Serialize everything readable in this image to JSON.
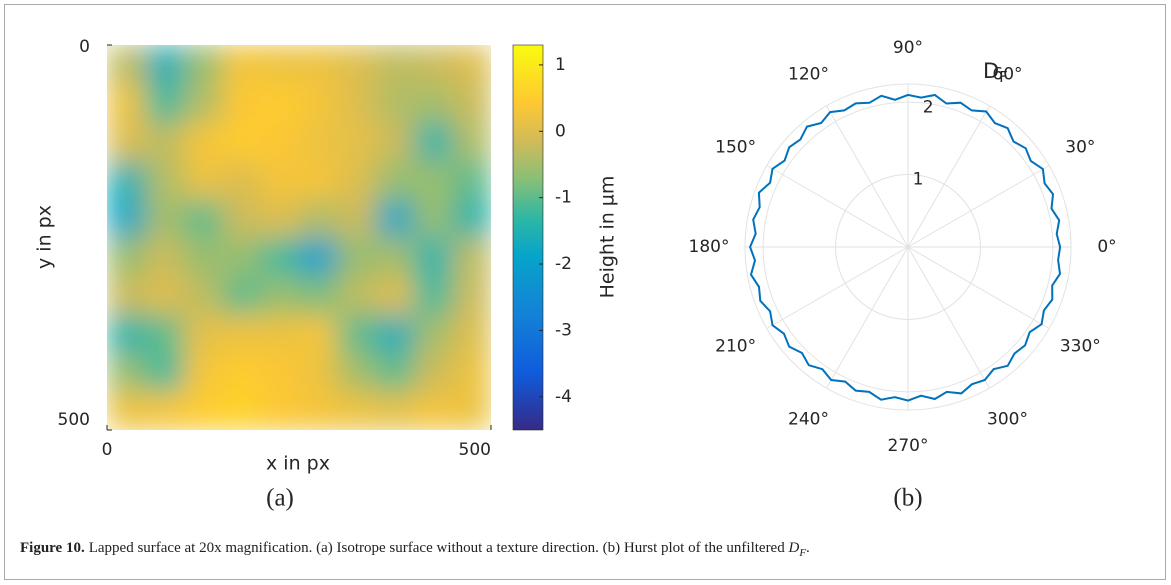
{
  "chart_data": [
    {
      "type": "heatmap",
      "panel_label": "(a)",
      "xlabel": "x in px",
      "ylabel": "y in px",
      "colorbar_label": "Height in µm",
      "colormap": "parula",
      "xlim": [
        0,
        500
      ],
      "ylim": [
        500,
        0
      ],
      "xticks": [
        0,
        500
      ],
      "yticks": [
        0,
        500
      ],
      "clim": [
        -4.5,
        1.3
      ],
      "cticks": [
        1,
        0,
        -1,
        -2,
        -3,
        -4
      ],
      "z": [
        [
          -0.3,
          -1.6,
          -0.6,
          0.3,
          0.2,
          0.2,
          0.0,
          -0.3,
          -0.2,
          0.0
        ],
        [
          0.2,
          -1.2,
          -0.4,
          0.4,
          0.5,
          0.3,
          0.0,
          -0.4,
          -0.5,
          -0.2
        ],
        [
          0.0,
          -0.3,
          0.3,
          0.5,
          0.4,
          0.2,
          0.1,
          -0.2,
          -1.4,
          -0.4
        ],
        [
          -1.5,
          -0.4,
          0.2,
          0.0,
          0.3,
          0.3,
          0.0,
          -0.6,
          -0.6,
          -1.0
        ],
        [
          -1.8,
          -0.5,
          -1.0,
          -0.2,
          0.0,
          -0.4,
          -0.2,
          -1.8,
          -0.6,
          -1.4
        ],
        [
          -0.6,
          -0.2,
          -0.6,
          -0.6,
          -1.2,
          -2.0,
          -0.6,
          -0.5,
          -1.4,
          -0.3
        ],
        [
          -0.2,
          0.0,
          -0.3,
          -1.0,
          -0.6,
          -0.8,
          -0.3,
          0.0,
          -1.2,
          -0.2
        ],
        [
          -1.4,
          -1.0,
          0.1,
          0.2,
          0.2,
          0.3,
          -1.0,
          -1.6,
          -0.5,
          0.0
        ],
        [
          -0.6,
          -1.2,
          0.3,
          0.5,
          0.4,
          0.2,
          -0.5,
          -1.0,
          -0.2,
          0.2
        ],
        [
          0.2,
          0.3,
          0.5,
          0.6,
          0.4,
          0.3,
          0.2,
          0.1,
          0.3,
          0.2
        ]
      ]
    },
    {
      "type": "polar",
      "panel_label": "(b)",
      "rlabel": "D",
      "rlabel_sub": "F",
      "color": "#0072bd",
      "rlim": [
        0,
        2.25
      ],
      "rticks": [
        1,
        2
      ],
      "thetaticks": [
        {
          "value": 0,
          "label": "0°"
        },
        {
          "value": 30,
          "label": "30°"
        },
        {
          "value": 60,
          "label": "60°"
        },
        {
          "value": 90,
          "label": "90°"
        },
        {
          "value": 120,
          "label": "120°"
        },
        {
          "value": 150,
          "label": "150°"
        },
        {
          "value": 180,
          "label": "180°"
        },
        {
          "value": 210,
          "label": "210°"
        },
        {
          "value": 240,
          "label": "240°"
        },
        {
          "value": 270,
          "label": "270°"
        },
        {
          "value": 300,
          "label": "300°"
        },
        {
          "value": 330,
          "label": "330°"
        }
      ],
      "theta": [
        0,
        5,
        10,
        15,
        20,
        25,
        30,
        35,
        40,
        45,
        50,
        55,
        60,
        65,
        70,
        75,
        80,
        85,
        90,
        95,
        100,
        105,
        110,
        115,
        120,
        125,
        130,
        135,
        140,
        145,
        150,
        155,
        160,
        165,
        170,
        175,
        180,
        185,
        190,
        195,
        200,
        205,
        210,
        215,
        220,
        225,
        230,
        235,
        240,
        245,
        250,
        255,
        260,
        265,
        270,
        275,
        280,
        285,
        290,
        295,
        300,
        305,
        310,
        315,
        320,
        325,
        330,
        335,
        340,
        345,
        350,
        355
      ],
      "r": [
        2.1,
        2.06,
        2.12,
        2.05,
        2.13,
        2.08,
        2.15,
        2.07,
        2.12,
        2.06,
        2.14,
        2.09,
        2.16,
        2.08,
        2.12,
        2.05,
        2.13,
        2.07,
        2.1,
        2.04,
        2.12,
        2.06,
        2.11,
        2.08,
        2.15,
        2.09,
        2.17,
        2.1,
        2.14,
        2.08,
        2.16,
        2.1,
        2.19,
        2.12,
        2.17,
        2.11,
        2.18,
        2.12,
        2.2,
        2.13,
        2.17,
        2.1,
        2.16,
        2.09,
        2.14,
        2.07,
        2.13,
        2.06,
        2.12,
        2.05,
        2.11,
        2.07,
        2.14,
        2.08,
        2.12,
        2.06,
        2.13,
        2.07,
        2.15,
        2.09,
        2.12,
        2.06,
        2.14,
        2.08,
        2.11,
        2.05,
        2.13,
        2.07,
        2.12,
        2.06,
        2.13,
        2.08
      ]
    }
  ],
  "caption": {
    "label": "Figure 10.",
    "text": "Lapped surface at 20x magnification. (a) Isotrope surface without a texture direction. (b) Hurst plot of the unfiltered ",
    "symbol": "D",
    "symbol_sub": "F",
    "end": "."
  }
}
